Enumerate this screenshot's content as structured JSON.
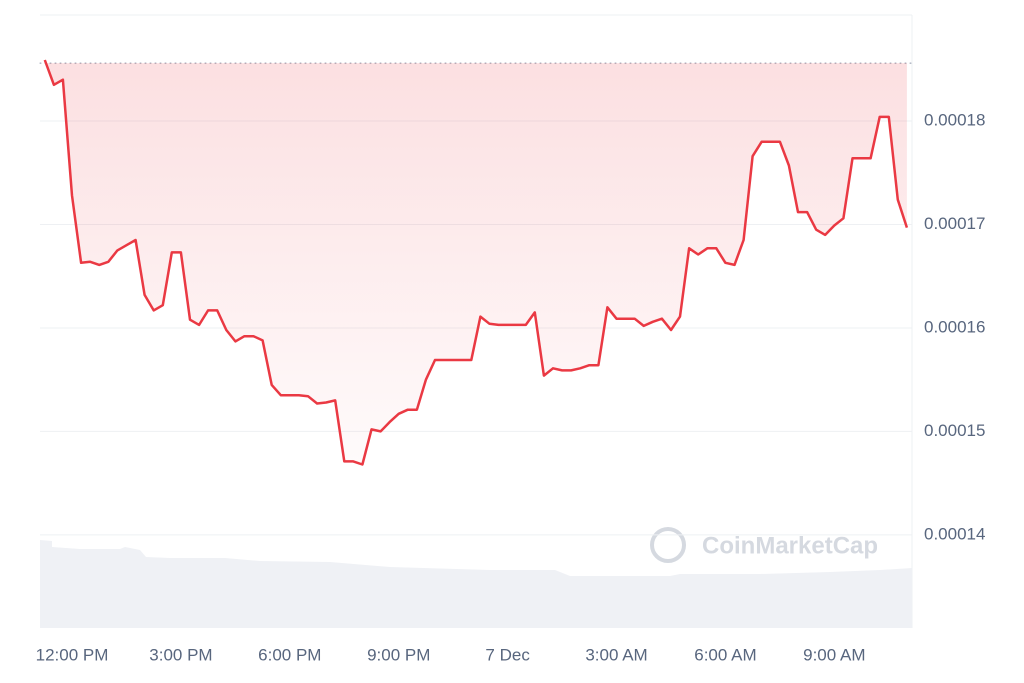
{
  "chart_data": {
    "type": "line",
    "watermark": "CoinMarketCap",
    "categories": [
      null,
      null,
      null,
      "12:00 PM",
      null,
      null,
      null,
      null,
      null,
      null,
      null,
      null,
      null,
      null,
      null,
      "3:00 PM",
      null,
      null,
      null,
      null,
      null,
      null,
      null,
      null,
      null,
      null,
      null,
      "6:00 PM",
      null,
      null,
      null,
      null,
      null,
      null,
      null,
      null,
      null,
      null,
      null,
      "9:00 PM",
      null,
      null,
      null,
      null,
      null,
      null,
      null,
      null,
      null,
      null,
      null,
      "7 Dec",
      null,
      null,
      null,
      null,
      null,
      null,
      null,
      null,
      null,
      null,
      null,
      "3:00 AM",
      null,
      null,
      null,
      null,
      null,
      null,
      null,
      null,
      null,
      null,
      null,
      "6:00 AM",
      null,
      null,
      null,
      null,
      null,
      null,
      null,
      null,
      null,
      null,
      null,
      "9:00 AM",
      null,
      null,
      null,
      null,
      null,
      null,
      null,
      null
    ],
    "series": [
      {
        "color": "#ea3943",
        "values": [
          0.0001859,
          0.0001835,
          0.000184,
          0.0001728,
          0.0001663,
          0.0001664,
          0.0001661,
          0.0001664,
          0.0001675,
          0.000168,
          0.0001685,
          0.0001632,
          0.0001617,
          0.0001622,
          0.0001673,
          0.0001673,
          0.0001608,
          0.0001603,
          0.0001617,
          0.0001617,
          0.0001598,
          0.0001587,
          0.0001592,
          0.0001592,
          0.0001588,
          0.0001545,
          0.0001535,
          0.0001535,
          0.0001535,
          0.0001534,
          0.0001527,
          0.0001528,
          0.000153,
          0.0001471,
          0.0001471,
          0.0001468,
          0.0001502,
          0.00015,
          0.0001509,
          0.0001517,
          0.0001521,
          0.0001521,
          0.000155,
          0.0001569,
          0.0001569,
          0.0001569,
          0.0001569,
          0.0001569,
          0.0001611,
          0.0001604,
          0.0001603,
          0.0001603,
          0.0001603,
          0.0001603,
          0.0001615,
          0.0001554,
          0.0001561,
          0.0001559,
          0.0001559,
          0.0001561,
          0.0001564,
          0.0001564,
          0.000162,
          0.0001609,
          0.0001609,
          0.0001609,
          0.0001602,
          0.0001606,
          0.0001609,
          0.0001598,
          0.0001611,
          0.0001677,
          0.0001671,
          0.0001677,
          0.0001677,
          0.0001663,
          0.0001661,
          0.0001685,
          0.0001766,
          0.000178,
          0.000178,
          0.000178,
          0.0001757,
          0.0001712,
          0.0001712,
          0.0001695,
          0.000169,
          0.0001699,
          0.0001706,
          0.0001764,
          0.0001764,
          0.0001764,
          0.0001804,
          0.0001804,
          0.0001724,
          0.0001697
        ]
      }
    ],
    "baseline": 0.0001856,
    "ylim": [
      0.000131,
      0.00019025
    ],
    "yticks": [
      0.00014,
      0.00015,
      0.00016,
      0.00017,
      0.00018
    ],
    "grid": true
  }
}
